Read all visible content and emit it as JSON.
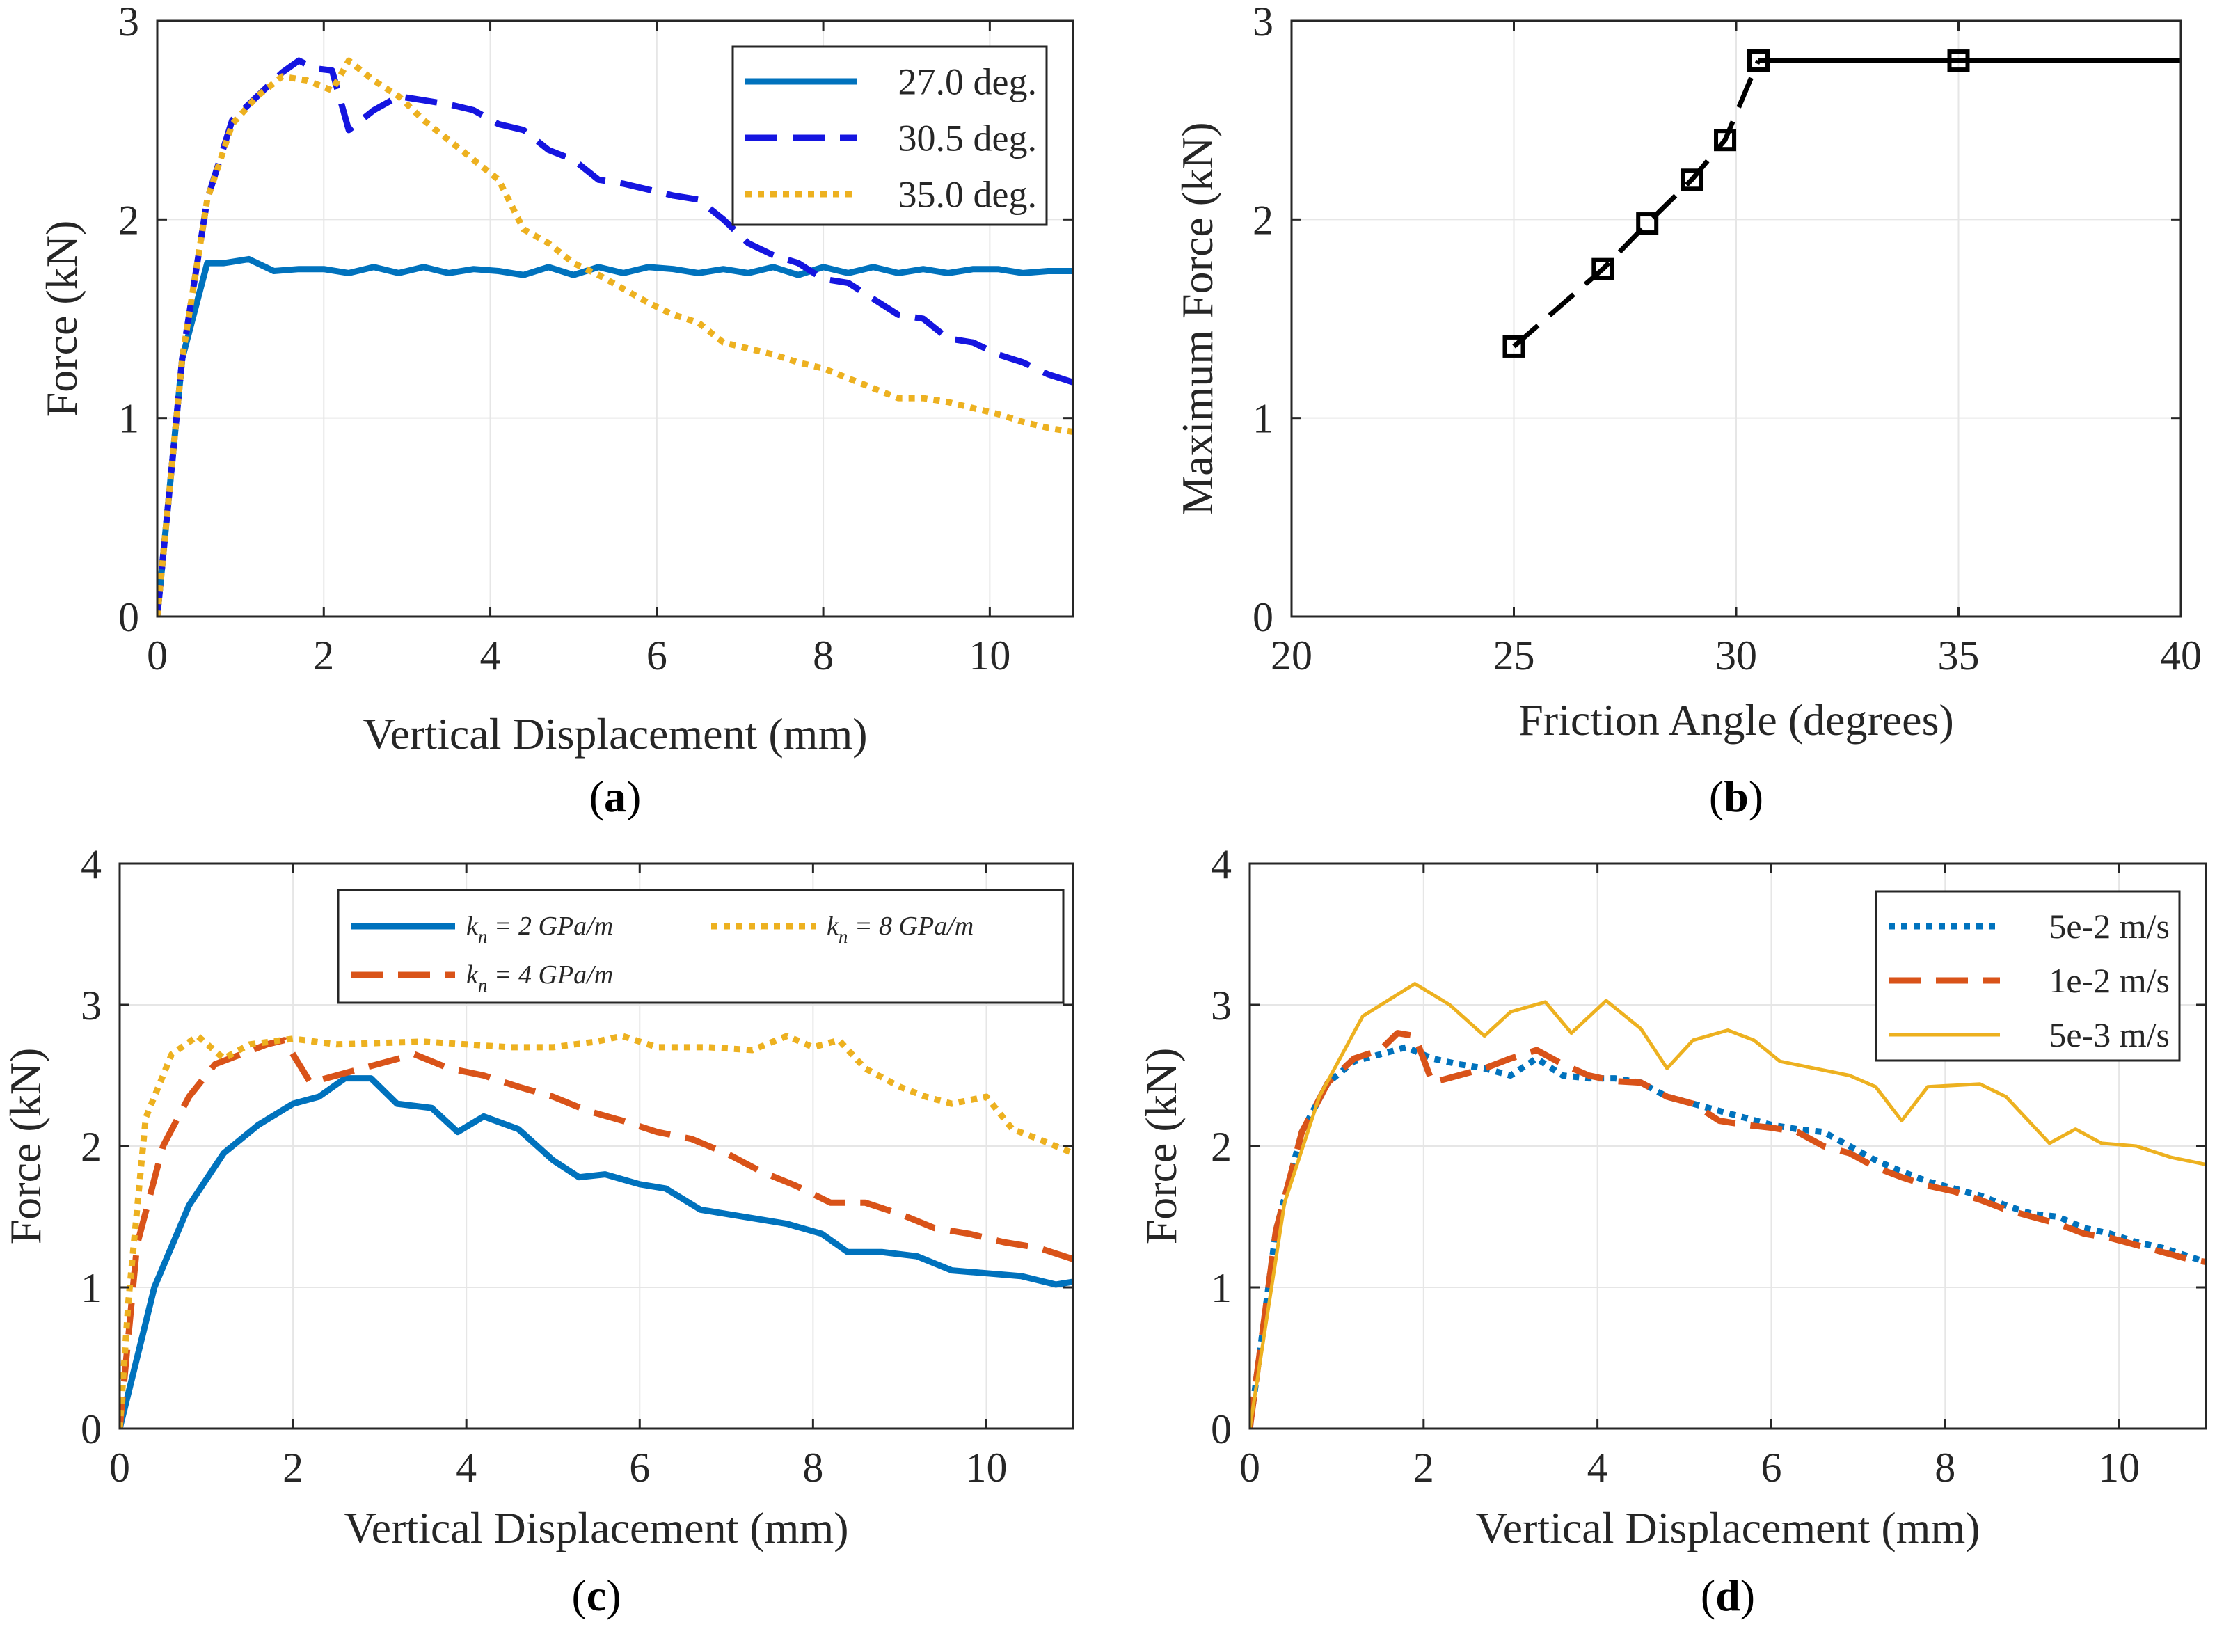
{
  "chart_data": [
    {
      "panel": "a",
      "type": "line",
      "panel_label": "a",
      "xlabel": "Vertical Displacement (mm)",
      "ylabel": "Force (kN)",
      "xlim": [
        0,
        11
      ],
      "ylim": [
        0,
        3
      ],
      "xticks": [
        0,
        2,
        4,
        6,
        8,
        10
      ],
      "yticks": [
        0,
        1,
        2,
        3
      ],
      "grid": true,
      "legend": "top-right",
      "legend_layout": "column",
      "series": [
        {
          "name": "27.0 deg.",
          "color": "#0072BD",
          "dash": "solid",
          "width": 9,
          "x": [
            0,
            0.3,
            0.6,
            0.8,
            1.1,
            1.4,
            1.7,
            2.0,
            2.3,
            2.6,
            2.9,
            3.2,
            3.5,
            3.8,
            4.1,
            4.4,
            4.7,
            5.0,
            5.3,
            5.6,
            5.9,
            6.2,
            6.5,
            6.8,
            7.1,
            7.4,
            7.7,
            8.0,
            8.3,
            8.6,
            8.9,
            9.2,
            9.5,
            9.8,
            10.1,
            10.4,
            10.7,
            11.0
          ],
          "y": [
            0,
            1.3,
            1.78,
            1.78,
            1.8,
            1.74,
            1.75,
            1.75,
            1.73,
            1.76,
            1.73,
            1.76,
            1.73,
            1.75,
            1.74,
            1.72,
            1.76,
            1.72,
            1.76,
            1.73,
            1.76,
            1.75,
            1.73,
            1.75,
            1.73,
            1.76,
            1.72,
            1.76,
            1.73,
            1.76,
            1.73,
            1.75,
            1.73,
            1.75,
            1.75,
            1.73,
            1.74,
            1.74
          ]
        },
        {
          "name": "30.5 deg.",
          "color": "#1515E0",
          "dash": "long",
          "width": 9,
          "x": [
            0,
            0.3,
            0.6,
            0.9,
            1.2,
            1.5,
            1.7,
            1.9,
            2.1,
            2.3,
            2.6,
            2.9,
            3.2,
            3.5,
            3.8,
            4.1,
            4.4,
            4.7,
            5.0,
            5.3,
            5.6,
            5.9,
            6.2,
            6.5,
            6.8,
            7.1,
            7.4,
            7.7,
            8.0,
            8.3,
            8.6,
            8.9,
            9.2,
            9.5,
            9.8,
            10.1,
            10.4,
            10.7,
            11.0
          ],
          "y": [
            0,
            1.3,
            2.1,
            2.5,
            2.62,
            2.74,
            2.8,
            2.76,
            2.75,
            2.45,
            2.55,
            2.62,
            2.6,
            2.58,
            2.55,
            2.48,
            2.45,
            2.35,
            2.3,
            2.2,
            2.18,
            2.15,
            2.12,
            2.1,
            2.0,
            1.88,
            1.82,
            1.78,
            1.7,
            1.68,
            1.6,
            1.52,
            1.5,
            1.4,
            1.38,
            1.32,
            1.28,
            1.22,
            1.18
          ]
        },
        {
          "name": "35.0 deg.",
          "color": "#EDB120",
          "dash": "dot",
          "width": 9,
          "x": [
            0,
            0.3,
            0.6,
            0.9,
            1.2,
            1.5,
            1.8,
            2.1,
            2.3,
            2.6,
            2.9,
            3.2,
            3.5,
            3.8,
            4.1,
            4.4,
            4.7,
            5.0,
            5.3,
            5.6,
            5.9,
            6.2,
            6.5,
            6.8,
            7.1,
            7.4,
            7.7,
            8.0,
            8.3,
            8.6,
            8.9,
            9.2,
            9.5,
            9.8,
            10.1,
            10.4,
            10.7,
            11.0
          ],
          "y": [
            0,
            1.3,
            2.1,
            2.48,
            2.62,
            2.72,
            2.7,
            2.65,
            2.8,
            2.7,
            2.62,
            2.5,
            2.4,
            2.3,
            2.2,
            1.95,
            1.88,
            1.78,
            1.72,
            1.65,
            1.58,
            1.52,
            1.48,
            1.38,
            1.35,
            1.32,
            1.28,
            1.25,
            1.2,
            1.15,
            1.1,
            1.1,
            1.08,
            1.05,
            1.02,
            0.98,
            0.95,
            0.93
          ]
        }
      ]
    },
    {
      "panel": "b",
      "type": "line",
      "panel_label": "b",
      "xlabel": "Friction Angle (degrees)",
      "ylabel": "Maximum Force (kN)",
      "xlim": [
        20,
        40
      ],
      "ylim": [
        0,
        3
      ],
      "xticks": [
        20,
        25,
        30,
        35,
        40
      ],
      "yticks": [
        0,
        1,
        2,
        3
      ],
      "grid": true,
      "series": [
        {
          "name": "dashed segment",
          "color": "#000000",
          "dash": "long",
          "width": 7,
          "x": [
            25,
            27,
            28,
            29,
            29.75,
            30.5
          ],
          "y": [
            1.36,
            1.75,
            1.98,
            2.2,
            2.4,
            2.8
          ],
          "markers": true
        },
        {
          "name": "solid segment",
          "color": "#000000",
          "dash": "solid",
          "width": 7,
          "x": [
            30.5,
            35,
            40
          ],
          "y": [
            2.8,
            2.8,
            2.8
          ],
          "markers": [
            true,
            true,
            false
          ]
        }
      ]
    },
    {
      "panel": "c",
      "type": "line",
      "panel_label": "c",
      "xlabel": "Vertical Displacement (mm)",
      "ylabel": "Force (kN)",
      "xlim": [
        0,
        11
      ],
      "ylim": [
        0,
        4
      ],
      "xticks": [
        0,
        2,
        4,
        6,
        8,
        10
      ],
      "yticks": [
        0,
        1,
        2,
        3,
        4
      ],
      "grid": true,
      "legend": "top-right",
      "legend_layout": "two-column",
      "series": [
        {
          "name": "k_n = 2 GPa/m",
          "legend_main": "k",
          "legend_sub": "n",
          "legend_rest": " = 2 GPa/m",
          "color": "#0072BD",
          "dash": "solid",
          "width": 9,
          "x": [
            0,
            0.4,
            0.8,
            1.2,
            1.6,
            2.0,
            2.3,
            2.6,
            2.9,
            3.2,
            3.6,
            3.9,
            4.2,
            4.6,
            5.0,
            5.3,
            5.6,
            6.0,
            6.3,
            6.7,
            7.0,
            7.4,
            7.7,
            8.1,
            8.4,
            8.8,
            9.2,
            9.6,
            10.0,
            10.4,
            10.8,
            11.0
          ],
          "y": [
            0,
            1.0,
            1.58,
            1.95,
            2.15,
            2.3,
            2.35,
            2.48,
            2.48,
            2.3,
            2.27,
            2.1,
            2.21,
            2.12,
            1.9,
            1.78,
            1.8,
            1.73,
            1.7,
            1.55,
            1.52,
            1.48,
            1.45,
            1.38,
            1.25,
            1.25,
            1.22,
            1.12,
            1.1,
            1.08,
            1.02,
            1.04
          ]
        },
        {
          "name": "k_n = 4 GPa/m",
          "legend_main": "k",
          "legend_sub": "n",
          "legend_rest": " = 4 GPa/m",
          "color": "#D95319",
          "dash": "long",
          "width": 9,
          "x": [
            0,
            0.2,
            0.5,
            0.8,
            1.1,
            1.4,
            1.7,
            1.9,
            2.2,
            2.5,
            2.8,
            3.1,
            3.4,
            3.8,
            4.2,
            4.6,
            5.0,
            5.4,
            5.8,
            6.2,
            6.6,
            7.0,
            7.4,
            7.8,
            8.2,
            8.6,
            9.0,
            9.4,
            9.8,
            10.2,
            10.6,
            11.0
          ],
          "y": [
            0,
            1.3,
            2.0,
            2.35,
            2.58,
            2.65,
            2.72,
            2.75,
            2.45,
            2.5,
            2.55,
            2.6,
            2.65,
            2.55,
            2.5,
            2.42,
            2.35,
            2.25,
            2.18,
            2.1,
            2.05,
            1.95,
            1.82,
            1.72,
            1.6,
            1.6,
            1.52,
            1.42,
            1.38,
            1.32,
            1.28,
            1.2
          ]
        },
        {
          "name": "k_n = 8 GPa/m",
          "legend_main": "k",
          "legend_sub": "n",
          "legend_rest": " = 8 GPa/m",
          "color": "#EDB120",
          "dash": "dot",
          "width": 9,
          "x": [
            0,
            0.1,
            0.3,
            0.6,
            0.9,
            1.2,
            1.5,
            2.0,
            2.5,
            3.0,
            3.5,
            4.0,
            4.5,
            5.0,
            5.5,
            5.8,
            6.2,
            6.8,
            7.3,
            7.7,
            8.0,
            8.3,
            8.6,
            9.0,
            9.3,
            9.6,
            10.0,
            10.3,
            10.6,
            11.0
          ],
          "y": [
            0,
            0.9,
            2.2,
            2.65,
            2.78,
            2.62,
            2.72,
            2.76,
            2.72,
            2.73,
            2.74,
            2.72,
            2.7,
            2.7,
            2.74,
            2.78,
            2.7,
            2.7,
            2.68,
            2.78,
            2.7,
            2.75,
            2.55,
            2.42,
            2.35,
            2.3,
            2.35,
            2.12,
            2.05,
            1.95
          ]
        }
      ]
    },
    {
      "panel": "d",
      "type": "line",
      "panel_label": "d",
      "xlabel": "Vertical Displacement (mm)",
      "ylabel": "Force (kN)",
      "xlim": [
        0,
        11
      ],
      "ylim": [
        0,
        4
      ],
      "xticks": [
        0,
        2,
        4,
        6,
        8,
        10
      ],
      "yticks": [
        0,
        1,
        2,
        3,
        4
      ],
      "grid": true,
      "legend": "top-right",
      "legend_layout": "column",
      "series": [
        {
          "name": "5e-2 m/s",
          "color": "#0072BD",
          "dash": "dot",
          "width": 9,
          "x": [
            0,
            0.3,
            0.6,
            0.9,
            1.2,
            1.5,
            1.8,
            2.1,
            2.4,
            2.7,
            3.0,
            3.3,
            3.6,
            3.9,
            4.2,
            4.5,
            4.8,
            5.1,
            5.4,
            5.7,
            6.0,
            6.3,
            6.6,
            6.9,
            7.2,
            7.5,
            7.8,
            8.1,
            8.4,
            8.7,
            9.0,
            9.3,
            9.6,
            9.9,
            10.2,
            10.5,
            10.8,
            11.0
          ],
          "y": [
            0,
            1.4,
            2.1,
            2.45,
            2.6,
            2.65,
            2.7,
            2.62,
            2.58,
            2.55,
            2.5,
            2.62,
            2.5,
            2.48,
            2.48,
            2.45,
            2.35,
            2.3,
            2.25,
            2.2,
            2.15,
            2.12,
            2.1,
            2.0,
            1.9,
            1.82,
            1.75,
            1.7,
            1.65,
            1.58,
            1.52,
            1.5,
            1.42,
            1.38,
            1.32,
            1.28,
            1.22,
            1.18
          ]
        },
        {
          "name": "1e-2 m/s",
          "color": "#D95319",
          "dash": "long",
          "width": 9,
          "x": [
            0,
            0.3,
            0.6,
            0.9,
            1.2,
            1.5,
            1.7,
            1.9,
            2.1,
            2.4,
            2.7,
            3.0,
            3.3,
            3.6,
            3.9,
            4.2,
            4.5,
            4.8,
            5.1,
            5.4,
            5.7,
            6.0,
            6.3,
            6.6,
            6.9,
            7.2,
            7.5,
            7.8,
            8.1,
            8.4,
            8.7,
            9.0,
            9.3,
            9.6,
            9.9,
            10.2,
            10.5,
            10.8,
            11.0
          ],
          "y": [
            0,
            1.4,
            2.1,
            2.45,
            2.62,
            2.68,
            2.8,
            2.78,
            2.45,
            2.5,
            2.55,
            2.62,
            2.68,
            2.58,
            2.5,
            2.46,
            2.45,
            2.35,
            2.3,
            2.18,
            2.15,
            2.13,
            2.1,
            2.0,
            1.95,
            1.85,
            1.78,
            1.72,
            1.68,
            1.62,
            1.55,
            1.5,
            1.45,
            1.38,
            1.35,
            1.3,
            1.25,
            1.2,
            1.18
          ]
        },
        {
          "name": "5e-3 m/s",
          "color": "#EDB120",
          "dash": "solid",
          "width": 5,
          "x": [
            0,
            0.4,
            0.8,
            1.3,
            1.9,
            2.3,
            2.7,
            3.0,
            3.4,
            3.7,
            4.1,
            4.5,
            4.8,
            5.1,
            5.5,
            5.8,
            6.1,
            6.5,
            6.9,
            7.2,
            7.5,
            7.8,
            8.1,
            8.4,
            8.7,
            9.2,
            9.5,
            9.8,
            10.2,
            10.6,
            11.0
          ],
          "y": [
            0,
            1.6,
            2.35,
            2.92,
            3.15,
            3.0,
            2.78,
            2.95,
            3.02,
            2.8,
            3.03,
            2.83,
            2.55,
            2.75,
            2.82,
            2.75,
            2.6,
            2.55,
            2.5,
            2.42,
            2.18,
            2.42,
            2.43,
            2.44,
            2.35,
            2.02,
            2.12,
            2.02,
            2.0,
            1.92,
            1.87
          ]
        }
      ]
    }
  ]
}
